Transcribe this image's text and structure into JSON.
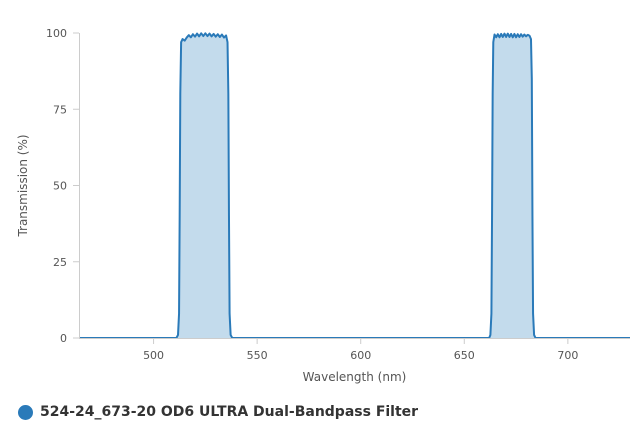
{
  "chart_data": {
    "type": "area",
    "title": "",
    "xlabel": "Wavelength (nm)",
    "ylabel": "Transmission (%)",
    "xlim": [
      464,
      730
    ],
    "ylim": [
      0,
      100
    ],
    "x_ticks": [
      500,
      550,
      600,
      650,
      700
    ],
    "y_ticks": [
      0,
      25,
      50,
      75,
      100
    ],
    "grid": false,
    "legend_position": "bottom-left",
    "series": [
      {
        "name": "524-24_673-20 OD6 ULTRA Dual-Bandpass Filter",
        "color": "#2a7ab9",
        "fill_color": "#c3dbec",
        "points": [
          [
            464,
            0
          ],
          [
            511,
            0
          ],
          [
            511.8,
            1
          ],
          [
            512.3,
            8
          ],
          [
            512.6,
            40
          ],
          [
            512.9,
            80
          ],
          [
            513.3,
            97
          ],
          [
            514,
            98
          ],
          [
            515,
            97.5
          ],
          [
            516,
            98.5
          ],
          [
            517,
            99.3
          ],
          [
            518,
            98.6
          ],
          [
            519,
            99.6
          ],
          [
            520,
            98.8
          ],
          [
            521,
            99.8
          ],
          [
            522,
            98.9
          ],
          [
            523,
            99.9
          ],
          [
            524,
            99
          ],
          [
            525,
            99.9
          ],
          [
            526,
            99
          ],
          [
            527,
            99.8
          ],
          [
            528,
            98.9
          ],
          [
            529,
            99.7
          ],
          [
            530,
            98.8
          ],
          [
            531,
            99.6
          ],
          [
            532,
            98.7
          ],
          [
            533,
            99.5
          ],
          [
            534,
            98.5
          ],
          [
            535,
            99.2
          ],
          [
            535.7,
            97
          ],
          [
            536.1,
            80
          ],
          [
            536.4,
            40
          ],
          [
            536.7,
            8
          ],
          [
            537.2,
            1
          ],
          [
            538,
            0
          ],
          [
            662,
            0
          ],
          [
            662.6,
            1
          ],
          [
            663.1,
            8
          ],
          [
            663.4,
            40
          ],
          [
            663.7,
            80
          ],
          [
            664,
            97
          ],
          [
            664.6,
            99.5
          ],
          [
            665.4,
            98.6
          ],
          [
            666.2,
            99.6
          ],
          [
            667,
            98.6
          ],
          [
            667.8,
            99.7
          ],
          [
            668.6,
            98.7
          ],
          [
            669.4,
            99.8
          ],
          [
            670.2,
            98.7
          ],
          [
            671,
            99.8
          ],
          [
            671.8,
            98.7
          ],
          [
            672.6,
            99.7
          ],
          [
            673.4,
            98.6
          ],
          [
            674.2,
            99.7
          ],
          [
            675,
            98.6
          ],
          [
            675.8,
            99.6
          ],
          [
            676.6,
            98.7
          ],
          [
            677.4,
            99.6
          ],
          [
            678.2,
            98.8
          ],
          [
            679,
            99.5
          ],
          [
            679.8,
            98.9
          ],
          [
            680.6,
            99.4
          ],
          [
            681.5,
            99.1
          ],
          [
            682.2,
            98
          ],
          [
            682.6,
            85
          ],
          [
            682.9,
            40
          ],
          [
            683.2,
            8
          ],
          [
            683.7,
            1
          ],
          [
            684.4,
            0
          ],
          [
            730,
            0
          ]
        ]
      }
    ]
  }
}
